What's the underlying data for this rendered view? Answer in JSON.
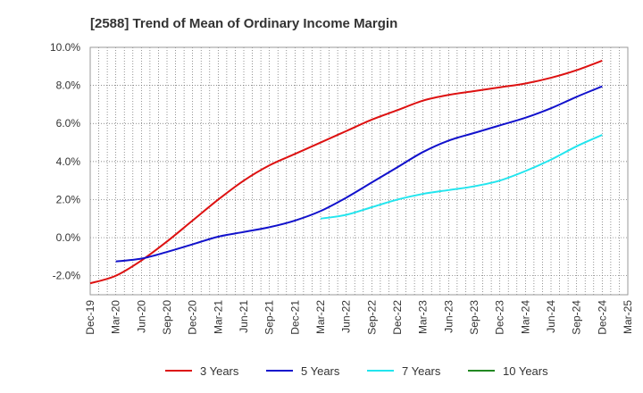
{
  "chart_data": {
    "type": "line",
    "title": "[2588]  Trend of Mean of Ordinary Income Margin",
    "xlabel": "",
    "ylabel": "",
    "x_ticks": [
      "Dec-19",
      "Mar-20",
      "Jun-20",
      "Sep-20",
      "Dec-20",
      "Mar-21",
      "Jun-21",
      "Sep-21",
      "Dec-21",
      "Mar-22",
      "Jun-22",
      "Sep-22",
      "Dec-22",
      "Mar-23",
      "Jun-23",
      "Sep-23",
      "Dec-23",
      "Mar-24",
      "Jun-24",
      "Sep-24",
      "Dec-24",
      "Mar-25"
    ],
    "y_ticks": [
      "-2.0%",
      "0.0%",
      "2.0%",
      "4.0%",
      "6.0%",
      "8.0%",
      "10.0%"
    ],
    "ylim": [
      -3.0,
      10.0
    ],
    "y_tick_values": [
      -2,
      0,
      2,
      4,
      6,
      8,
      10
    ],
    "grid": true,
    "legend_position": "bottom",
    "series": [
      {
        "name": "3 Years",
        "color": "#dd1111",
        "x": [
          "Dec-19",
          "Mar-20",
          "Jun-20",
          "Sep-20",
          "Dec-20",
          "Mar-21",
          "Jun-21",
          "Sep-21",
          "Dec-21",
          "Mar-22",
          "Jun-22",
          "Sep-22",
          "Dec-22",
          "Mar-23",
          "Jun-23",
          "Sep-23",
          "Dec-23",
          "Mar-24",
          "Jun-24",
          "Sep-24",
          "Dec-24"
        ],
        "values": [
          -2.4,
          -2.0,
          -1.2,
          -0.2,
          0.9,
          2.0,
          3.0,
          3.8,
          4.4,
          5.0,
          5.6,
          6.2,
          6.7,
          7.2,
          7.5,
          7.7,
          7.9,
          8.1,
          8.4,
          8.8,
          9.3
        ]
      },
      {
        "name": "5 Years",
        "color": "#1111cc",
        "x": [
          "Mar-20",
          "Jun-20",
          "Sep-20",
          "Dec-20",
          "Mar-21",
          "Jun-21",
          "Sep-21",
          "Dec-21",
          "Mar-22",
          "Jun-22",
          "Sep-22",
          "Dec-22",
          "Mar-23",
          "Jun-23",
          "Sep-23",
          "Dec-23",
          "Mar-24",
          "Jun-24",
          "Sep-24",
          "Dec-24"
        ],
        "values": [
          -1.25,
          -1.1,
          -0.75,
          -0.35,
          0.05,
          0.3,
          0.55,
          0.9,
          1.4,
          2.1,
          2.9,
          3.7,
          4.5,
          5.1,
          5.5,
          5.9,
          6.3,
          6.8,
          7.4,
          7.95
        ]
      },
      {
        "name": "7 Years",
        "color": "#22e5ee",
        "x": [
          "Mar-22",
          "Jun-22",
          "Sep-22",
          "Dec-22",
          "Mar-23",
          "Jun-23",
          "Sep-23",
          "Dec-23",
          "Mar-24",
          "Jun-24",
          "Sep-24",
          "Dec-24"
        ],
        "values": [
          1.0,
          1.2,
          1.6,
          2.0,
          2.3,
          2.5,
          2.7,
          3.0,
          3.5,
          4.1,
          4.8,
          5.4
        ]
      },
      {
        "name": "10 Years",
        "color": "#228822",
        "x": [],
        "values": []
      }
    ]
  }
}
